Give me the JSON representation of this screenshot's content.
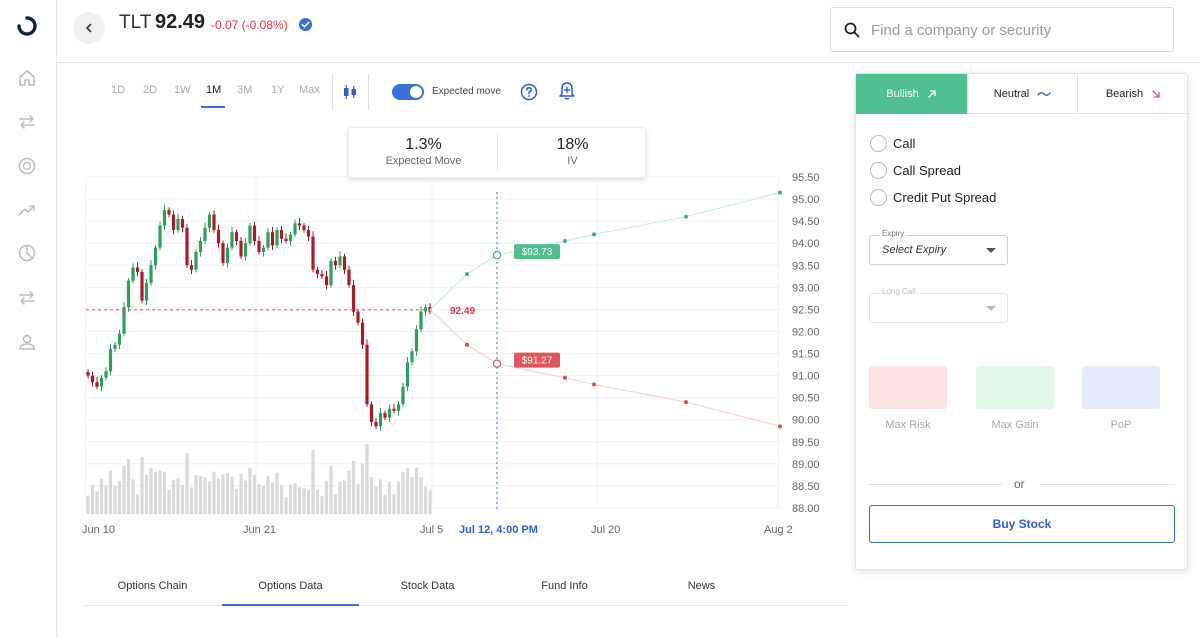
{
  "header": {
    "ticker": "TLT",
    "price": "92.49",
    "change": "-0.07 (-0.08%)",
    "search_placeholder": "Find a company or security"
  },
  "sidebar": {
    "icons": [
      "home-icon",
      "transfer-icon",
      "dollar-icon",
      "trending-icon",
      "pie-icon",
      "swap-icon",
      "user-icon"
    ]
  },
  "toolbar": {
    "timeframes": [
      "1D",
      "2D",
      "1W",
      "1M",
      "3M",
      "1Y",
      "Max"
    ],
    "active_timeframe": "1M",
    "expected_move_toggle": "Expected move",
    "expected_move_enabled": true
  },
  "expected_move": {
    "move_value": "1.3%",
    "move_label": "Expected Move",
    "iv_value": "18%",
    "iv_label": "IV"
  },
  "colors": {
    "up": "#2e9e5b",
    "down": "#a51c2a",
    "accent": "#3a6fd8",
    "bull": "#4fbf8f",
    "bear": "#e0565e"
  },
  "chart_data": {
    "type": "candlestick",
    "y_ticks": [
      "95.50",
      "95.00",
      "94.50",
      "94.00",
      "93.50",
      "93.00",
      "92.50",
      "92.00",
      "91.50",
      "91.00",
      "90.50",
      "90.00",
      "89.50",
      "89.00",
      "88.50",
      "88.00"
    ],
    "ylim": [
      88,
      95.5
    ],
    "x_labels": [
      "Jun 10",
      "Jun 21",
      "Jul 5",
      "Jul 12, 4:00 PM",
      "Jul 20",
      "Aug 2"
    ],
    "current_price": 92.49,
    "current_price_label": "92.49",
    "expiry_marker": "Jul 12, 4:00 PM",
    "upper_target": "$93.73",
    "upper_target_value": 93.73,
    "lower_target": "$91.27",
    "lower_target_value": 91.27,
    "upper_projection": [
      92.49,
      93.3,
      93.73,
      94.05,
      94.2,
      94.6,
      95.15
    ],
    "lower_projection": [
      92.49,
      91.7,
      91.27,
      90.95,
      90.8,
      90.4,
      89.85
    ],
    "closes": [
      91.0,
      90.85,
      90.75,
      90.95,
      91.1,
      91.6,
      91.7,
      91.95,
      92.55,
      93.15,
      93.45,
      93.35,
      92.7,
      93.1,
      93.5,
      93.9,
      94.4,
      94.75,
      94.65,
      94.3,
      94.55,
      94.35,
      93.5,
      93.4,
      93.8,
      94.05,
      94.35,
      94.65,
      94.3,
      94.0,
      93.55,
      93.9,
      94.25,
      94.05,
      93.7,
      94.0,
      94.4,
      94.05,
      93.8,
      93.9,
      94.25,
      93.95,
      94.3,
      94.1,
      94.05,
      94.2,
      94.45,
      94.4,
      94.3,
      94.15,
      93.4,
      93.3,
      93.25,
      93.05,
      93.6,
      93.5,
      93.7,
      93.4,
      93.05,
      92.45,
      92.2,
      91.7,
      90.35,
      89.95,
      89.85,
      90.15,
      90.05,
      90.25,
      90.2,
      90.35,
      90.75,
      91.3,
      91.55,
      92.05,
      92.45,
      92.55,
      92.45
    ]
  },
  "bottom_tabs": [
    "Options Chain",
    "Options Data",
    "Stock Data",
    "Fund Info",
    "News"
  ],
  "active_bottom_tab": "Options Data",
  "strategy": {
    "tabs": [
      "Bullish",
      "Neutral",
      "Bearish"
    ],
    "active_tab": "Bullish",
    "options": [
      "Call",
      "Call Spread",
      "Credit Put Spread"
    ],
    "expiry_label": "Expiry",
    "expiry_value": "Select Expiry",
    "long_call_label": "Long Call",
    "metrics": [
      "Max Risk",
      "Max Gain",
      "PoP"
    ],
    "or_text": "or",
    "buy_button": "Buy Stock"
  }
}
